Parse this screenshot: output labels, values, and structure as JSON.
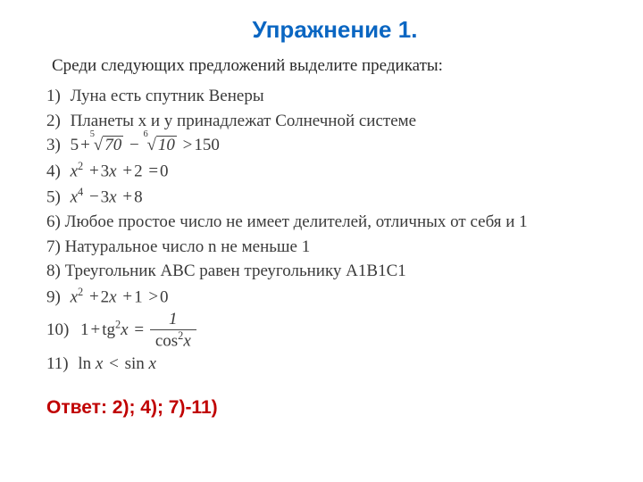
{
  "colors": {
    "title": "#0a66c2",
    "answer": "#c00000",
    "body_text": "#333333",
    "background": "#ffffff",
    "rule": "#444444"
  },
  "typography": {
    "title_font": "Arial",
    "title_size_pt": 20,
    "title_weight": "bold",
    "body_font": "Times New Roman",
    "body_size_pt": 14,
    "answer_font": "Arial",
    "answer_size_pt": 16,
    "answer_weight": "bold"
  },
  "title": "Упражнение 1.",
  "intro": "Среди следующих предложений выделите предикаты:",
  "items": {
    "i1": {
      "num": "1)",
      "text": "Луна есть спутник Венеры"
    },
    "i2": {
      "num": "2)",
      "text": "Планеты x и y принадлежат Солнечной системе"
    },
    "i3": {
      "num": "3)",
      "formula": {
        "a_const": "5",
        "a_root_idx": "5",
        "a_root_arg": "70",
        "op1": "−",
        "b_root_idx": "6",
        "b_root_arg": "10",
        "op2": ">",
        "rhs": "150"
      }
    },
    "i4": {
      "num": "4)",
      "formula": {
        "lhs_var": "x",
        "lhs_pow": "2",
        "mid_coef": "3",
        "mid_var": "x",
        "const": "2",
        "op_eq": "=",
        "rhs": "0",
        "op_plus": "+"
      }
    },
    "i5": {
      "num": "5)",
      "formula": {
        "lhs_var": "x",
        "lhs_pow": "4",
        "mid_coef": "3",
        "mid_var": "x",
        "const": "8",
        "op_minus": "−",
        "op_plus": "+"
      }
    },
    "i6": {
      "num": "6)",
      "text": "Любое простое число не имеет делителей, отличных от себя и 1"
    },
    "i7": {
      "num": "7)",
      "text": "Натуральное число n не меньше 1"
    },
    "i8": {
      "num": "8)",
      "text": "Треугольник АВС равен треугольнику А1В1С1"
    },
    "i9": {
      "num": "9)",
      "formula": {
        "lhs_var": "x",
        "lhs_pow": "2",
        "mid_coef": "2",
        "mid_var": "x",
        "const": "1",
        "op_gt": ">",
        "rhs": "0",
        "op_plus": "+"
      }
    },
    "i10": {
      "num": "10)",
      "formula": {
        "lhs_const": "1",
        "op_plus": "+",
        "fn": "tg",
        "fn_pow": "2",
        "fn_arg": "x",
        "op_eq": "=",
        "frac_num": "1",
        "frac_den_fn": "cos",
        "frac_den_pow": "2",
        "frac_den_arg": "x"
      }
    },
    "i11": {
      "num": "11)",
      "formula": {
        "fn": "ln",
        "arg": "x",
        "op_lt": "<",
        "rhs_fn": "sin",
        "rhs_arg": "x"
      }
    }
  },
  "answer": "Ответ: 2);  4);  7)-11)"
}
